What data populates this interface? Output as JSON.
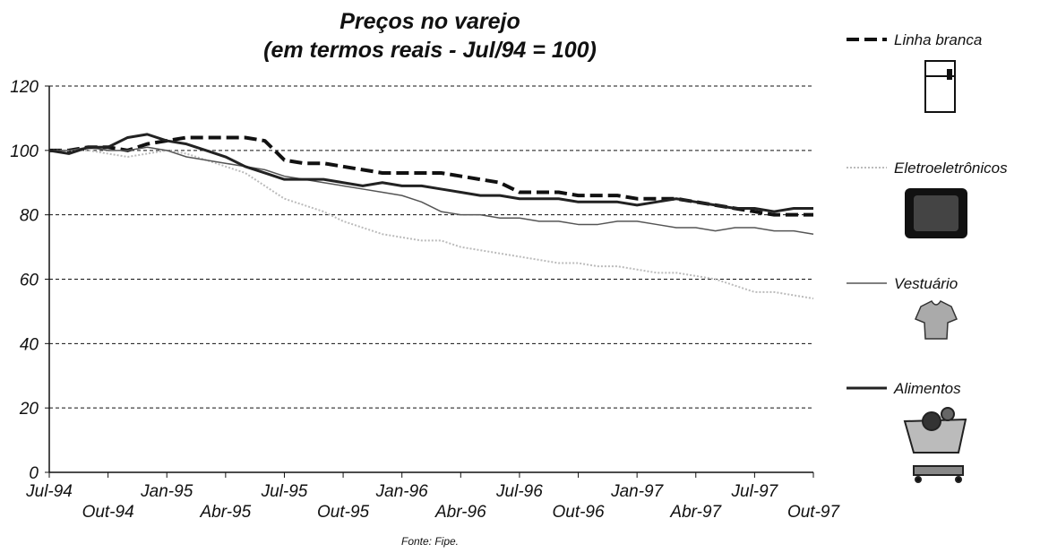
{
  "chart_data": {
    "type": "line",
    "title": "Preços no varejo",
    "subtitle": "(em termos reais - Jul/94 = 100)",
    "source": "Fonte: Fipe.",
    "categories": [
      "Jul-94",
      null,
      null,
      "Out-94",
      null,
      null,
      "Jan-95",
      null,
      null,
      "Abr-95",
      null,
      null,
      "Jul-95",
      null,
      null,
      "Out-95",
      null,
      null,
      "Jan-96",
      null,
      null,
      "Abr-96",
      null,
      null,
      "Jul-96",
      null,
      null,
      "Out-96",
      null,
      null,
      "Jan-97",
      null,
      null,
      "Abr-97",
      null,
      null,
      "Jul-97",
      null,
      null,
      "Out-97"
    ],
    "ylim": [
      0,
      120
    ],
    "yticks": [
      0,
      20,
      40,
      60,
      80,
      100,
      120
    ],
    "grid": true,
    "series": [
      {
        "name": "Linha branca",
        "color": "#111111",
        "line_style": "dashed",
        "values": [
          100,
          100,
          101,
          101,
          100,
          102,
          103,
          104,
          104,
          104,
          104,
          103,
          97,
          96,
          96,
          95,
          94,
          93,
          93,
          93,
          93,
          92,
          91,
          90,
          87,
          87,
          87,
          86,
          86,
          86,
          85,
          85,
          85,
          84,
          83,
          82,
          81,
          80,
          80,
          80
        ]
      },
      {
        "name": "Eletroeletrônicos",
        "color": "#bbbbbb",
        "line_style": "dotted",
        "values": [
          100,
          100,
          100,
          99,
          98,
          99,
          100,
          99,
          97,
          95,
          93,
          89,
          85,
          83,
          81,
          78,
          76,
          74,
          73,
          72,
          72,
          70,
          69,
          68,
          67,
          66,
          65,
          65,
          64,
          64,
          63,
          62,
          62,
          61,
          60,
          58,
          56,
          56,
          55,
          54
        ]
      },
      {
        "name": "Vestuário",
        "color": "#555555",
        "line_style": "thin",
        "values": [
          100,
          100,
          101,
          100,
          100,
          101,
          100,
          98,
          97,
          96,
          95,
          94,
          92,
          91,
          90,
          89,
          88,
          87,
          86,
          84,
          81,
          80,
          80,
          79,
          79,
          78,
          78,
          77,
          77,
          78,
          78,
          77,
          76,
          76,
          75,
          76,
          76,
          75,
          75,
          74
        ]
      },
      {
        "name": "Alimentos",
        "color": "#222222",
        "line_style": "thick",
        "values": [
          100,
          99,
          101,
          101,
          104,
          105,
          103,
          102,
          100,
          98,
          95,
          93,
          91,
          91,
          91,
          90,
          89,
          90,
          89,
          89,
          88,
          87,
          86,
          86,
          85,
          85,
          85,
          84,
          84,
          84,
          83,
          84,
          85,
          84,
          83,
          82,
          82,
          81,
          82,
          82
        ]
      }
    ]
  }
}
